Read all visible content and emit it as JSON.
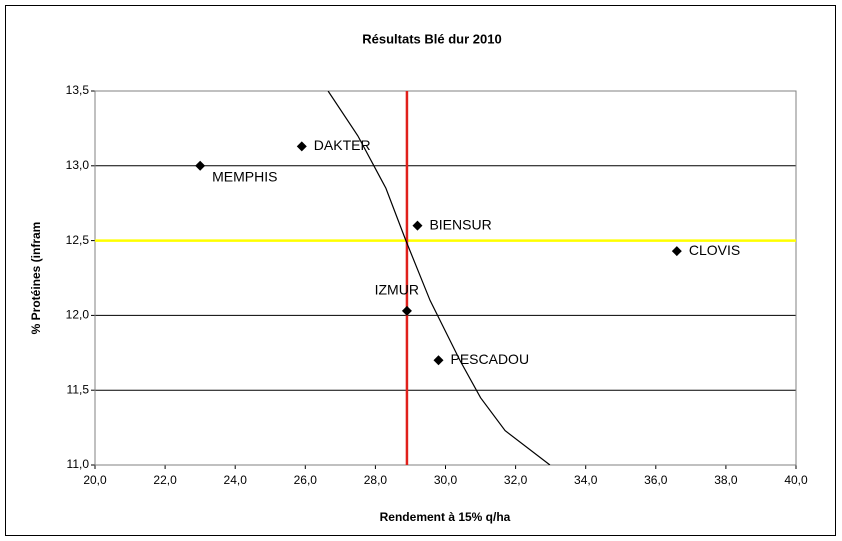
{
  "chart_data": {
    "type": "scatter",
    "title": "Résultats Blé dur 2010",
    "xlabel": "Rendement à 15% q/ha",
    "ylabel": "% Protéines (infram",
    "labels": [
      "MEMPHIS",
      "DAKTER",
      "BIENSUR",
      "CLOVIS",
      "IZMUR",
      "PESCADOU"
    ],
    "x": [
      23.0,
      25.9,
      29.2,
      36.6,
      28.9,
      29.8
    ],
    "y": [
      13.0,
      13.13,
      12.6,
      12.43,
      12.03,
      11.7
    ],
    "color": "#000000",
    "xlim": [
      20,
      40
    ],
    "xticks": [
      {
        "value": 20,
        "label": "20,0"
      },
      {
        "value": 22,
        "label": "22,0"
      },
      {
        "value": 24,
        "label": "24,0"
      },
      {
        "value": 26,
        "label": "26,0"
      },
      {
        "value": 28,
        "label": "28,0"
      },
      {
        "value": 30,
        "label": "30,0"
      },
      {
        "value": 32,
        "label": "32,0"
      },
      {
        "value": 34,
        "label": "34,0"
      },
      {
        "value": 36,
        "label": "36,0"
      },
      {
        "value": 38,
        "label": "38,0"
      },
      {
        "value": 40,
        "label": "40,0"
      }
    ],
    "ylim": [
      11,
      13.5
    ],
    "yticks": [
      {
        "value": 11,
        "label": "11,0"
      },
      {
        "value": 11.5,
        "label": "11,5"
      },
      {
        "value": 12,
        "label": "12,0"
      },
      {
        "value": 12.5,
        "label": "12,5"
      },
      {
        "value": 13,
        "label": "13,0"
      },
      {
        "value": 13.5,
        "label": "13,5"
      }
    ],
    "grid": true,
    "vline": {
      "x": 28.9,
      "color": "#e0201b"
    },
    "hline": {
      "y": 12.5,
      "color": "#ffff00"
    },
    "curve": {
      "color": "#000000",
      "x": [
        26.65,
        27.5,
        28.3,
        28.87,
        29.56,
        30.41,
        31.0,
        31.7,
        32.98
      ],
      "y": [
        13.5,
        13.2,
        12.85,
        12.5,
        12.1,
        11.7,
        11.45,
        11.23,
        11.0
      ]
    }
  }
}
